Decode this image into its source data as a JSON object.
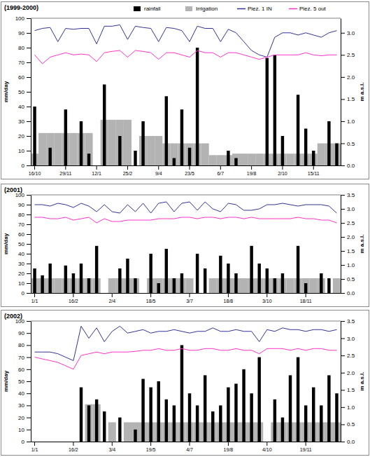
{
  "chart_data": [
    {
      "type": "bar",
      "title": "(1999-2000)",
      "y_label": "mm/day",
      "y2_label": "m a.s.l.",
      "categories": [
        "16/10",
        null,
        null,
        null,
        "29/11",
        null,
        null,
        null,
        "12/1",
        null,
        null,
        null,
        "25/2",
        null,
        null,
        null,
        "9/4",
        null,
        null,
        null,
        "23/5",
        null,
        null,
        null,
        "6/7",
        null,
        null,
        null,
        "19/8",
        null,
        null,
        null,
        "2/10",
        null,
        null,
        null,
        "15/11",
        null,
        null,
        null
      ],
      "ylim": [
        0,
        100
      ],
      "yticks": [
        0,
        10,
        20,
        30,
        40,
        50,
        60,
        70,
        80,
        90,
        100
      ],
      "y2lim": [
        0,
        3.33
      ],
      "y2ticks": [
        {
          "value": 0,
          "label": "0.0"
        },
        {
          "value": 0.5,
          "label": "0.5"
        },
        {
          "value": 1,
          "label": "1.0"
        },
        {
          "value": 1.5,
          "label": "1.5"
        },
        {
          "value": 2,
          "label": "2.0"
        },
        {
          "value": 2.5,
          "label": "2.5"
        },
        {
          "value": 3,
          "label": "3.0"
        }
      ],
      "legend": "upper right",
      "series": [
        {
          "name": "rainfall",
          "type": "bar",
          "color": "#000000",
          "values": [
            40,
            0,
            12,
            0,
            38,
            0,
            30,
            8,
            0,
            55,
            0,
            20,
            0,
            10,
            30,
            0,
            0,
            47,
            5,
            38,
            12,
            80,
            0,
            0,
            0,
            10,
            5,
            0,
            0,
            0,
            73,
            75,
            20,
            0,
            48,
            25,
            10,
            0,
            30,
            15
          ]
        },
        {
          "name": "Irrigation",
          "type": "bar",
          "color": "#b3b3b3",
          "values": [
            8,
            22,
            22,
            22,
            22,
            22,
            22,
            22,
            0,
            31,
            31,
            31,
            31,
            0,
            20,
            20,
            20,
            15,
            15,
            15,
            15,
            15,
            15,
            7,
            7,
            7,
            8,
            8,
            8,
            8,
            8,
            8,
            8,
            8,
            8,
            8,
            8,
            15,
            15,
            15
          ]
        },
        {
          "name": "Piez. 1 IN",
          "type": "line",
          "axis": "y2",
          "color": "#333399",
          "values": [
            3.05,
            3.1,
            3.12,
            2.8,
            3.1,
            3.08,
            3.1,
            3.1,
            2.75,
            3.15,
            3.15,
            3.18,
            2.85,
            3.15,
            3.12,
            3.1,
            2.8,
            3.12,
            3.1,
            3.05,
            2.8,
            3.15,
            3.1,
            3.1,
            2.8,
            3.08,
            3.0,
            2.8,
            2.6,
            2.5,
            2.45,
            2.9,
            3.0,
            3.0,
            2.95,
            3.0,
            2.95,
            2.9,
            3.0,
            3.05
          ]
        },
        {
          "name": "Piez. 5 out",
          "type": "line",
          "axis": "y2",
          "color": "#ff33cc",
          "values": [
            2.5,
            2.3,
            2.45,
            2.5,
            2.55,
            2.5,
            2.52,
            2.5,
            2.35,
            2.55,
            2.58,
            2.6,
            2.45,
            2.6,
            2.58,
            2.55,
            2.4,
            2.55,
            2.55,
            2.5,
            2.45,
            2.6,
            2.55,
            2.55,
            2.45,
            2.55,
            2.55,
            2.5,
            2.45,
            2.4,
            2.45,
            2.5,
            2.5,
            2.5,
            2.5,
            2.55,
            2.5,
            2.48,
            2.5,
            2.5
          ]
        }
      ]
    },
    {
      "type": "bar",
      "title": "(2001)",
      "y_label": "mm/day",
      "y2_label": "m a.s.l.",
      "categories": [
        "1/1",
        null,
        null,
        null,
        null,
        "16/2",
        null,
        null,
        null,
        null,
        "2/4",
        null,
        null,
        null,
        null,
        "18/5",
        null,
        null,
        null,
        null,
        "3/7",
        null,
        null,
        null,
        null,
        "18/8",
        null,
        null,
        null,
        null,
        "3/10",
        null,
        null,
        null,
        null,
        "18/11",
        null,
        null,
        null,
        null
      ],
      "ylim": [
        0,
        100
      ],
      "yticks": [
        0,
        10,
        20,
        30,
        40,
        50,
        60,
        70,
        80,
        90,
        100
      ],
      "y2lim": [
        0,
        3.5
      ],
      "y2ticks": [
        {
          "value": 0,
          "label": "0.0"
        },
        {
          "value": 0.5,
          "label": "0.5"
        },
        {
          "value": 1,
          "label": "1.0"
        },
        {
          "value": 1.5,
          "label": "1.5"
        },
        {
          "value": 2,
          "label": "2.0"
        },
        {
          "value": 2.5,
          "label": "2.5"
        },
        {
          "value": 3,
          "label": "3.0"
        },
        {
          "value": 3.5,
          "label": "3.5"
        }
      ],
      "series": [
        {
          "type": "bar",
          "color": "#000000",
          "values": [
            25,
            18,
            30,
            0,
            28,
            20,
            30,
            15,
            48,
            0,
            0,
            25,
            35,
            15,
            0,
            40,
            10,
            45,
            15,
            20,
            0,
            40,
            25,
            0,
            38,
            30,
            20,
            0,
            48,
            30,
            25,
            15,
            20,
            0,
            48,
            10,
            0,
            20,
            15,
            0
          ]
        },
        {
          "type": "bar",
          "color": "#b3b3b3",
          "values": [
            15,
            15,
            15,
            15,
            15,
            15,
            15,
            15,
            15,
            0,
            15,
            15,
            15,
            15,
            0,
            15,
            15,
            15,
            15,
            15,
            15,
            0,
            0,
            15,
            15,
            15,
            15,
            15,
            15,
            15,
            15,
            15,
            15,
            15,
            15,
            15,
            15,
            15,
            0,
            15
          ]
        },
        {
          "type": "line",
          "axis": "y2",
          "color": "#333399",
          "values": [
            3.15,
            3.15,
            3.1,
            3.2,
            3.15,
            3.05,
            3.2,
            3.1,
            2.9,
            3.15,
            2.9,
            2.85,
            3.15,
            2.9,
            3.2,
            2.85,
            3.2,
            3.25,
            2.9,
            3.2,
            3.25,
            2.95,
            3.25,
            3.0,
            2.9,
            3.2,
            3.15,
            2.95,
            2.95,
            3.0,
            3.15,
            3.15,
            3.2,
            3.15,
            3.1,
            3.15,
            3.15,
            3.15,
            3.1,
            2.85
          ]
        },
        {
          "type": "line",
          "axis": "y2",
          "color": "#ff33cc",
          "values": [
            2.7,
            2.7,
            2.65,
            2.65,
            2.7,
            2.6,
            2.65,
            2.7,
            2.5,
            2.65,
            2.55,
            2.55,
            2.6,
            2.6,
            2.6,
            2.6,
            2.65,
            2.65,
            2.65,
            2.7,
            2.7,
            2.65,
            2.7,
            2.7,
            2.65,
            2.7,
            2.7,
            2.65,
            2.7,
            2.65,
            2.65,
            2.65,
            2.65,
            2.65,
            2.7,
            2.65,
            2.65,
            2.6,
            2.6,
            2.5
          ]
        }
      ]
    },
    {
      "type": "bar",
      "title": "(2002)",
      "y_label": "mm/day",
      "y2_label": "m a.s.l.",
      "categories": [
        "1/1",
        null,
        null,
        null,
        null,
        "16/2",
        null,
        null,
        null,
        null,
        "3/4",
        null,
        null,
        null,
        null,
        "19/5",
        null,
        null,
        null,
        null,
        "4/7",
        null,
        null,
        null,
        null,
        "19/8",
        null,
        null,
        null,
        null,
        "4/10",
        null,
        null,
        null,
        null,
        "19/11",
        null,
        null,
        null,
        null
      ],
      "ylim": [
        0,
        100
      ],
      "yticks": [
        0,
        10,
        20,
        30,
        40,
        50,
        60,
        70,
        80,
        90,
        100
      ],
      "y2lim": [
        0,
        3.5
      ],
      "y2ticks": [
        {
          "value": 0,
          "label": "0.0"
        },
        {
          "value": 0.5,
          "label": "0.5"
        },
        {
          "value": 1,
          "label": "1.0"
        },
        {
          "value": 1.5,
          "label": "1.5"
        },
        {
          "value": 2,
          "label": "2.0"
        },
        {
          "value": 2.5,
          "label": "2.5"
        },
        {
          "value": 3,
          "label": "3.0"
        },
        {
          "value": 3.5,
          "label": "3.5"
        }
      ],
      "series": [
        {
          "type": "bar",
          "color": "#000000",
          "values": [
            0,
            0,
            0,
            0,
            0,
            0,
            45,
            30,
            35,
            25,
            0,
            20,
            0,
            10,
            52,
            45,
            50,
            35,
            30,
            80,
            40,
            30,
            55,
            25,
            30,
            45,
            48,
            60,
            40,
            70,
            0,
            35,
            20,
            55,
            70,
            30,
            45,
            30,
            55,
            40
          ]
        },
        {
          "type": "bar",
          "color": "#b3b3b3",
          "values": [
            0,
            0,
            0,
            0,
            0,
            0,
            0,
            31,
            31,
            0,
            16,
            0,
            16,
            16,
            16,
            16,
            16,
            16,
            16,
            16,
            16,
            16,
            16,
            16,
            16,
            16,
            16,
            16,
            16,
            16,
            0,
            16,
            16,
            16,
            16,
            16,
            16,
            16,
            16,
            16
          ]
        },
        {
          "type": "line",
          "axis": "y2",
          "color": "#333399",
          "values": [
            2.6,
            2.6,
            2.6,
            2.55,
            2.45,
            2.35,
            3.35,
            3.0,
            3.3,
            2.9,
            3.2,
            3.35,
            3.15,
            3.2,
            3.25,
            3.15,
            3.2,
            3.2,
            3.25,
            3.2,
            3.15,
            3.2,
            3.2,
            3.3,
            3.2,
            3.2,
            3.25,
            3.2,
            3.2,
            2.9,
            3.25,
            3.2,
            3.3,
            3.25,
            3.25,
            3.2,
            3.25,
            3.25,
            3.2,
            3.25
          ]
        },
        {
          "type": "line",
          "axis": "y2",
          "color": "#ff33cc",
          "values": [
            2.45,
            2.4,
            2.35,
            2.3,
            2.2,
            2.1,
            2.5,
            2.55,
            2.6,
            2.55,
            2.6,
            2.6,
            2.6,
            2.62,
            2.65,
            2.65,
            2.7,
            2.65,
            2.65,
            2.7,
            2.65,
            2.65,
            2.7,
            2.7,
            2.65,
            2.65,
            2.7,
            2.65,
            2.65,
            2.55,
            2.7,
            2.7,
            2.7,
            2.65,
            2.7,
            2.65,
            2.7,
            2.7,
            2.65,
            2.65
          ]
        }
      ]
    }
  ]
}
